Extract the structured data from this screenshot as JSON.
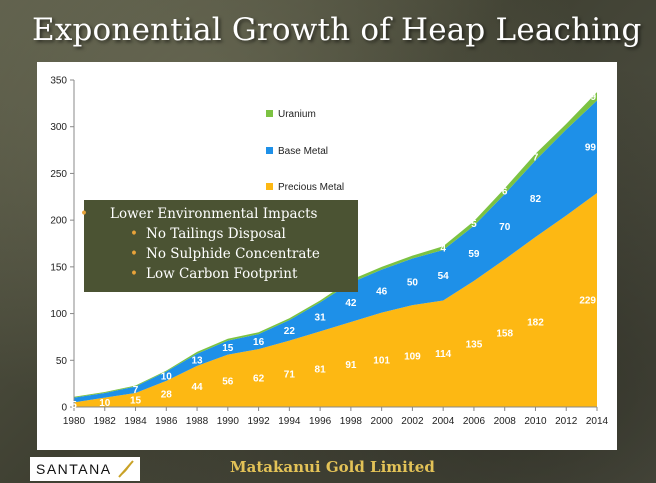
{
  "slide": {
    "title": "Exponential Growth of Heap Leaching",
    "footer_company": "Matakanui Gold Limited",
    "logo_text": "SANTANA"
  },
  "callout": {
    "items": [
      "Lower Environmental Impacts",
      "No Tailings Disposal",
      "No Sulphide Concentrate",
      "Low Carbon Footprint"
    ]
  },
  "colors": {
    "precious_metal": "#fdb813",
    "base_metal": "#1e90e8",
    "uranium": "#7cc242",
    "callout_bg": "#4b5333",
    "bullet": "#e8a33a"
  },
  "chart_data": {
    "type": "area",
    "stacked": true,
    "x": [
      1980,
      1982,
      1984,
      1986,
      1988,
      1990,
      1992,
      1994,
      1996,
      1998,
      2000,
      2002,
      2004,
      2006,
      2008,
      2010,
      2012,
      2014
    ],
    "xticks": [
      "1980",
      "1982",
      "1984",
      "1986",
      "1988",
      "1990",
      "1992",
      "1994",
      "1996",
      "1998",
      "2000",
      "2002",
      "2004",
      "2006",
      "2008",
      "2010",
      "2012",
      "2014"
    ],
    "yticks": [
      "0",
      "50",
      "100",
      "150",
      "200",
      "250",
      "300",
      "350"
    ],
    "ylim": [
      0,
      350
    ],
    "legend_position": "top-right",
    "grid": false,
    "series": [
      {
        "name": "Precious Metal",
        "color": "#fdb813",
        "values": [
          5,
          10,
          15,
          28,
          44,
          56,
          62,
          71,
          81,
          91,
          101,
          109,
          114,
          135,
          158,
          182,
          205,
          229
        ],
        "labels": [
          "5",
          "10",
          "15",
          "28",
          "44",
          "56",
          "62",
          "71",
          "81",
          "91",
          "101",
          "109",
          "114",
          "135",
          "158",
          "182",
          "",
          "229"
        ]
      },
      {
        "name": "Base Metal",
        "color": "#1e90e8",
        "values": [
          5,
          5,
          7,
          10,
          13,
          15,
          16,
          22,
          31,
          42,
          46,
          50,
          54,
          59,
          70,
          82,
          92,
          99
        ],
        "labels": [
          "",
          "",
          "7",
          "10",
          "13",
          "15",
          "16",
          "22",
          "31",
          "42",
          "46",
          "50",
          "54",
          "59",
          "70",
          "82",
          "",
          "99"
        ]
      },
      {
        "name": "Uranium",
        "color": "#7cc242",
        "values": [
          1,
          1,
          1,
          1,
          2,
          2,
          2,
          2,
          2,
          3,
          3,
          3,
          4,
          5,
          6,
          7,
          6,
          9
        ],
        "labels": [
          "",
          "",
          "",
          "",
          "",
          "",
          "",
          "",
          "",
          "",
          "",
          "",
          "4",
          "5",
          "6",
          "7",
          "",
          "9"
        ]
      }
    ]
  }
}
